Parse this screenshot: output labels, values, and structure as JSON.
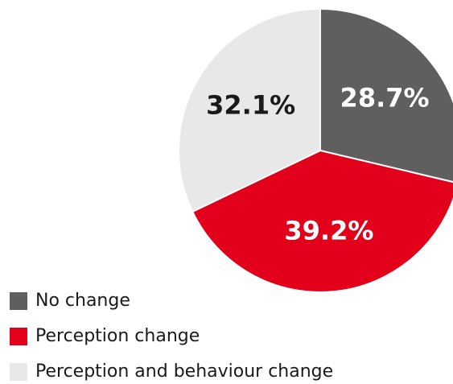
{
  "chart_data": {
    "type": "pie",
    "categories": [
      "No change",
      "Perception change",
      "Perception and behaviour change"
    ],
    "values": [
      28.7,
      39.2,
      32.1
    ],
    "value_labels": [
      "28.7%",
      "39.2%",
      "32.1%"
    ],
    "colors": [
      "#5f5f5f",
      "#e2001a",
      "#e8e8e8"
    ],
    "label_colors": [
      "#ffffff",
      "#ffffff",
      "#1a1a1a"
    ],
    "legend": "bottom-left"
  }
}
